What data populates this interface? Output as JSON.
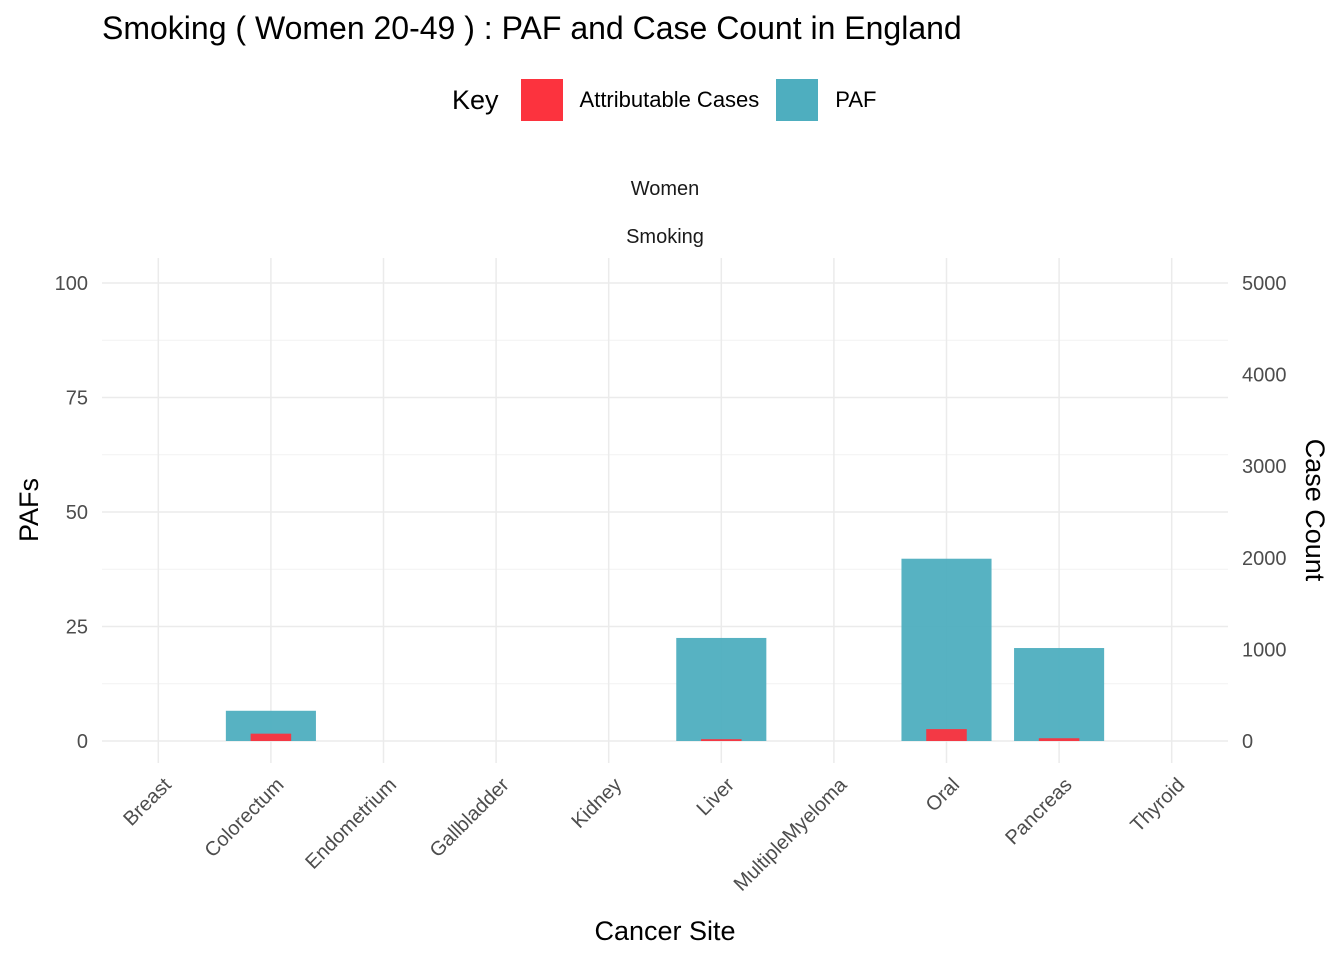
{
  "title": "Smoking ( Women 20-49 ) : PAF and Case Count in England",
  "legend": {
    "title": "Key",
    "items": [
      {
        "label": "Attributable Cases",
        "color": "#fc333e"
      },
      {
        "label": "PAF",
        "color": "#4eaebf"
      }
    ]
  },
  "strips": [
    "Women",
    "Smoking"
  ],
  "chart_data": {
    "type": "bar",
    "title": "Smoking ( Women 20-49 ) : PAF and Case Count in England",
    "xlabel": "Cancer Site",
    "ylabel": "PAFs",
    "ylabel_right": "Case Count",
    "ylim": [
      0,
      100
    ],
    "ylim_right": [
      0,
      5000
    ],
    "yticks": [
      0,
      25,
      50,
      75,
      100
    ],
    "yticks_right": [
      0,
      1000,
      2000,
      3000,
      4000,
      5000
    ],
    "grid": true,
    "legend_position": "top",
    "categories": [
      "Breast",
      "Colorectum",
      "Endometrium",
      "Gallbladder",
      "Kidney",
      "Liver",
      "MultipleMyeloma",
      "Oral",
      "Pancreas",
      "Thyroid"
    ],
    "series": [
      {
        "name": "PAF",
        "axis": "left",
        "color": "#4eaebf",
        "values": [
          0,
          6.6,
          0,
          0,
          0,
          22.5,
          0,
          39.8,
          20.3,
          0
        ]
      },
      {
        "name": "Attributable Cases",
        "axis": "right",
        "color": "#fc333e",
        "values": [
          0,
          80,
          0,
          0,
          0,
          20,
          0,
          130,
          30,
          0
        ]
      }
    ]
  }
}
